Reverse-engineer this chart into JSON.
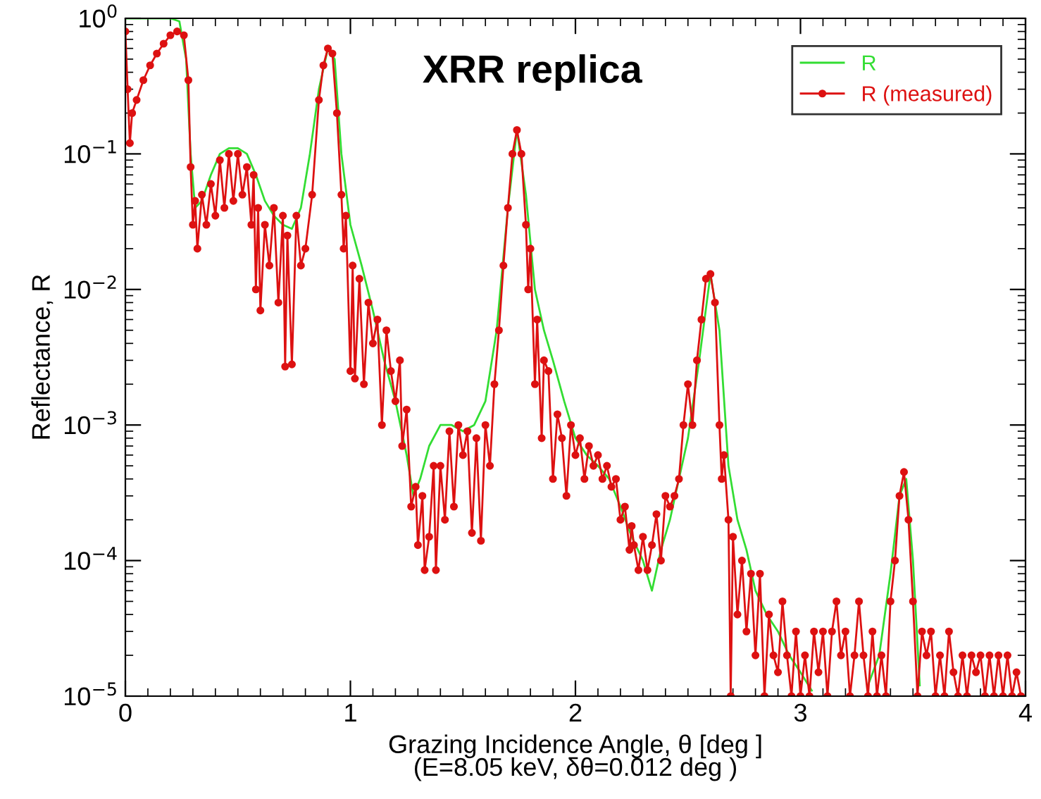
{
  "chart_data": {
    "type": "line",
    "xlabel": "Grazing Incidence Angle, θ [deg ]\n(E=8.05 keV, δθ=0.012 deg )",
    "ylabel": "Reflectance, R",
    "annotations": [
      "XRR replica"
    ],
    "log": "y",
    "xlim": [
      0,
      4
    ],
    "xticks": [
      0,
      1,
      2,
      3,
      4
    ],
    "ylim": [
      1e-05,
      1
    ],
    "yticks": [
      {
        "value": 1e-05,
        "label": "10$^{−5}$"
      },
      {
        "value": 0.0001,
        "label": "10$^{−4}$"
      },
      {
        "value": 0.001,
        "label": "10$^{−3}$"
      },
      {
        "value": 0.01,
        "label": "10$^{−2}$"
      },
      {
        "value": 0.1,
        "label": "10$^{−1}$"
      },
      {
        "value": 1,
        "label": "10$^{0}$"
      }
    ],
    "grid": false,
    "legend": "top right",
    "series": [
      {
        "name": "R",
        "color": "#33dd33",
        "marker": "none",
        "x": [
          0,
          0.2,
          0.24,
          0.27,
          0.29,
          0.31,
          0.34,
          0.38,
          0.42,
          0.46,
          0.5,
          0.54,
          0.58,
          0.62,
          0.66,
          0.7,
          0.74,
          0.78,
          0.82,
          0.86,
          0.9,
          0.93,
          0.96,
          1.0,
          1.05,
          1.1,
          1.15,
          1.2,
          1.25,
          1.28,
          1.31,
          1.35,
          1.4,
          1.45,
          1.5,
          1.55,
          1.6,
          1.65,
          1.7,
          1.74,
          1.78,
          1.82,
          1.86,
          1.9,
          1.95,
          2.0,
          2.05,
          2.1,
          2.15,
          2.2,
          2.25,
          2.3,
          2.34,
          2.38,
          2.42,
          2.46,
          2.5,
          2.55,
          2.6,
          2.64,
          2.68,
          2.72,
          2.76,
          2.8,
          2.85,
          2.9,
          2.95,
          3.0,
          3.05,
          3.08,
          3.28,
          3.3,
          3.35,
          3.4,
          3.44,
          3.47,
          3.5,
          3.53
        ],
        "values": [
          1,
          1,
          0.95,
          0.5,
          0.1,
          0.04,
          0.045,
          0.07,
          0.1,
          0.11,
          0.11,
          0.1,
          0.07,
          0.045,
          0.035,
          0.03,
          0.028,
          0.04,
          0.1,
          0.3,
          0.6,
          0.5,
          0.1,
          0.03,
          0.015,
          0.007,
          0.003,
          0.0015,
          0.0006,
          0.0003,
          0.0004,
          0.0007,
          0.001,
          0.001,
          0.0009,
          0.001,
          0.0015,
          0.005,
          0.04,
          0.15,
          0.05,
          0.01,
          0.005,
          0.003,
          0.0015,
          0.0008,
          0.0006,
          0.0005,
          0.0004,
          0.00025,
          0.00015,
          0.0001,
          6e-05,
          0.00012,
          0.0002,
          0.0004,
          0.0008,
          0.003,
          0.013,
          0.005,
          0.0005,
          0.0002,
          0.00012,
          6e-05,
          4e-05,
          3e-05,
          2e-05,
          1.5e-05,
          1.1e-05,
          null,
          null,
          1.2e-05,
          2e-05,
          8e-05,
          0.0003,
          0.0004,
          0.0001,
          1.2e-05
        ]
      },
      {
        "name": "R (measured)",
        "color": "#dd1111",
        "marker": "circle",
        "x": [
          0.0,
          0.01,
          0.02,
          0.03,
          0.05,
          0.08,
          0.11,
          0.14,
          0.17,
          0.2,
          0.23,
          0.26,
          0.28,
          0.29,
          0.3,
          0.31,
          0.32,
          0.34,
          0.36,
          0.38,
          0.4,
          0.42,
          0.44,
          0.46,
          0.48,
          0.5,
          0.52,
          0.54,
          0.56,
          0.57,
          0.58,
          0.59,
          0.6,
          0.62,
          0.64,
          0.66,
          0.68,
          0.7,
          0.71,
          0.72,
          0.74,
          0.76,
          0.78,
          0.8,
          0.83,
          0.86,
          0.88,
          0.9,
          0.92,
          0.94,
          0.96,
          0.97,
          0.98,
          1.0,
          1.01,
          1.02,
          1.04,
          1.06,
          1.08,
          1.1,
          1.12,
          1.14,
          1.16,
          1.18,
          1.2,
          1.22,
          1.23,
          1.25,
          1.27,
          1.29,
          1.3,
          1.32,
          1.33,
          1.35,
          1.37,
          1.38,
          1.4,
          1.42,
          1.44,
          1.46,
          1.48,
          1.5,
          1.52,
          1.54,
          1.56,
          1.58,
          1.6,
          1.62,
          1.64,
          1.66,
          1.68,
          1.7,
          1.72,
          1.74,
          1.76,
          1.78,
          1.79,
          1.8,
          1.82,
          1.83,
          1.85,
          1.86,
          1.88,
          1.9,
          1.92,
          1.94,
          1.96,
          1.98,
          2.0,
          2.02,
          2.04,
          2.06,
          2.08,
          2.1,
          2.12,
          2.14,
          2.16,
          2.18,
          2.2,
          2.22,
          2.24,
          2.25,
          2.26,
          2.28,
          2.3,
          2.32,
          2.34,
          2.36,
          2.38,
          2.4,
          2.42,
          2.44,
          2.46,
          2.48,
          2.5,
          2.52,
          2.54,
          2.56,
          2.58,
          2.6,
          2.62,
          2.64,
          2.65,
          2.66,
          2.68,
          2.69,
          2.7,
          2.72,
          2.74,
          2.76,
          2.78,
          2.8,
          2.82,
          2.84,
          2.86,
          2.88,
          2.9,
          2.92,
          2.94,
          2.96,
          2.98,
          3.0,
          3.02,
          3.04,
          3.06,
          3.08,
          3.1,
          3.12,
          3.14,
          3.16,
          3.18,
          3.2,
          3.22,
          3.24,
          3.26,
          3.28,
          3.3,
          3.32,
          3.34,
          3.36,
          3.38,
          3.4,
          3.42,
          3.44,
          3.46,
          3.48,
          3.5,
          3.52,
          3.54,
          3.56,
          3.58,
          3.6,
          3.62,
          3.64,
          3.66,
          3.68,
          3.7,
          3.72,
          3.74,
          3.76,
          3.78,
          3.8,
          3.82,
          3.84,
          3.86,
          3.88,
          3.9,
          3.92,
          3.94,
          3.96,
          3.98
        ],
        "values": [
          0.8,
          0.3,
          0.12,
          0.2,
          0.25,
          0.35,
          0.45,
          0.55,
          0.65,
          0.75,
          0.8,
          0.75,
          0.35,
          0.08,
          0.03,
          0.045,
          0.02,
          0.05,
          0.03,
          0.06,
          0.035,
          0.09,
          0.04,
          0.1,
          0.045,
          0.1,
          0.05,
          0.08,
          0.03,
          0.07,
          0.01,
          0.04,
          0.007,
          0.03,
          0.015,
          0.04,
          0.008,
          0.035,
          0.0027,
          0.025,
          0.0028,
          0.035,
          0.015,
          0.02,
          0.05,
          0.25,
          0.45,
          0.6,
          0.55,
          0.2,
          0.05,
          0.02,
          0.035,
          0.0025,
          0.015,
          0.0022,
          0.012,
          0.002,
          0.008,
          0.004,
          0.006,
          0.001,
          0.005,
          0.0025,
          0.0015,
          0.003,
          0.0007,
          0.0013,
          0.00025,
          0.00035,
          0.00013,
          0.0003,
          8.5e-05,
          0.00015,
          0.0005,
          8.5e-05,
          0.0005,
          0.0002,
          0.0009,
          0.00025,
          0.001,
          0.0006,
          0.0009,
          0.00016,
          0.0008,
          0.00014,
          0.001,
          0.0005,
          0.002,
          0.005,
          0.015,
          0.04,
          0.1,
          0.15,
          0.1,
          0.03,
          0.01,
          0.02,
          0.002,
          0.006,
          0.0008,
          0.003,
          0.0025,
          0.0004,
          0.0012,
          0.0008,
          0.0003,
          0.001,
          0.0006,
          0.0008,
          0.0004,
          0.0007,
          0.0005,
          0.0006,
          0.0004,
          0.0005,
          0.00035,
          0.0004,
          0.0002,
          0.00025,
          0.00012,
          0.00018,
          0.00013,
          8.5e-05,
          0.00015,
          8.5e-05,
          0.00013,
          0.00022,
          0.0001,
          0.0003,
          0.00025,
          0.0003,
          0.0004,
          0.001,
          0.002,
          0.001,
          0.003,
          0.006,
          0.012,
          0.013,
          0.008,
          0.001,
          0.0004,
          0.0006,
          0.0002,
          1e-05,
          0.00015,
          4e-05,
          0.0001,
          3e-05,
          8e-05,
          2e-05,
          8e-05,
          1e-05,
          4e-05,
          2e-05,
          1.5e-05,
          5e-05,
          2e-05,
          1e-05,
          3e-05,
          1e-05,
          2e-05,
          1e-05,
          3e-05,
          1.5e-05,
          3e-05,
          1e-05,
          3e-05,
          5e-05,
          2e-05,
          3e-05,
          1e-05,
          2e-05,
          5e-05,
          2e-05,
          1e-05,
          3e-05,
          1e-05,
          2e-05,
          1e-05,
          5e-05,
          0.0001,
          0.0003,
          0.00045,
          0.0002,
          5e-05,
          1e-05,
          3e-05,
          2e-05,
          3e-05,
          1e-05,
          2e-05,
          1e-05,
          3e-05,
          1.5e-05,
          1e-05,
          2e-05,
          1e-05,
          2e-05,
          1.5e-05,
          2e-05,
          1e-05,
          2e-05,
          1e-05,
          2e-05,
          1e-05,
          2e-05,
          1e-05,
          1.5e-05,
          1e-05
        ]
      }
    ]
  }
}
